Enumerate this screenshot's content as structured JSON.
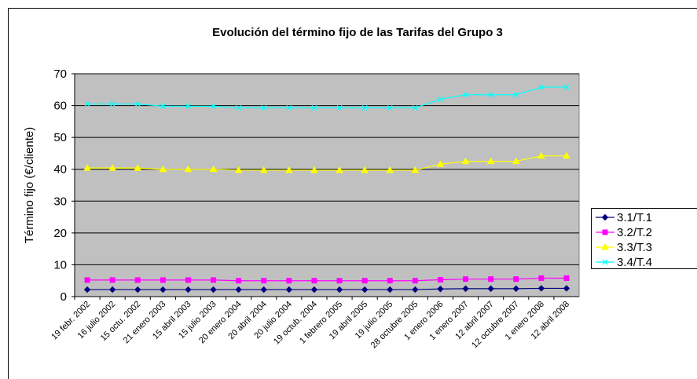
{
  "chart_data": {
    "type": "line",
    "title": "Evolución del término fijo de las Tarifas del Grupo 3",
    "y_label": "Término fijo (€/cliente)",
    "categories": [
      "19 febr. 2002",
      "16 julio 2002",
      "15 octu. 2002",
      "21 enero 2003",
      "15 abril 2003",
      "15 julio 2003",
      "20 enero 2004",
      "20 abril 2004",
      "20 julio 2004",
      "19 octub. 2004",
      "1 febrero 2005",
      "19 abril 2005",
      "19 julio 2005",
      "28 octubre 2005",
      "1 enero 2006",
      "1 enero 2007",
      "12 abril 2007",
      "12 octubre 2007",
      "1 enero 2008",
      "12 abril 2008"
    ],
    "series": [
      {
        "name": "3.1/T.1",
        "color": "#000080",
        "marker": "diamond",
        "values": [
          2.2,
          2.2,
          2.2,
          2.2,
          2.2,
          2.2,
          2.2,
          2.2,
          2.2,
          2.2,
          2.2,
          2.2,
          2.2,
          2.2,
          2.4,
          2.5,
          2.5,
          2.5,
          2.6,
          2.6
        ]
      },
      {
        "name": "3.2/T.2",
        "color": "#ff00ff",
        "marker": "square",
        "values": [
          5.2,
          5.2,
          5.2,
          5.2,
          5.2,
          5.2,
          5,
          5,
          5,
          5,
          5,
          5,
          5,
          5,
          5.3,
          5.5,
          5.5,
          5.5,
          5.8,
          5.8
        ]
      },
      {
        "name": "3.3/T.3",
        "color": "#ffff00",
        "marker": "triangle",
        "values": [
          40.4,
          40.4,
          40.4,
          40,
          40,
          40,
          39.7,
          39.7,
          39.7,
          39.7,
          39.7,
          39.7,
          39.7,
          39.7,
          41.6,
          42.5,
          42.5,
          42.5,
          44.2,
          44.2
        ]
      },
      {
        "name": "3.4/T.4",
        "color": "#00ffff",
        "marker": "x",
        "values": [
          60.5,
          60.5,
          60.5,
          59.8,
          59.8,
          59.8,
          59.3,
          59.3,
          59.3,
          59.3,
          59.3,
          59.3,
          59.3,
          59.3,
          62,
          63.4,
          63.4,
          63.4,
          65.8,
          65.8
        ]
      }
    ],
    "ylim": [
      0,
      70
    ],
    "yticks": [
      0,
      10,
      20,
      30,
      40,
      50,
      60,
      70
    ],
    "grid": true,
    "legend": "right"
  }
}
